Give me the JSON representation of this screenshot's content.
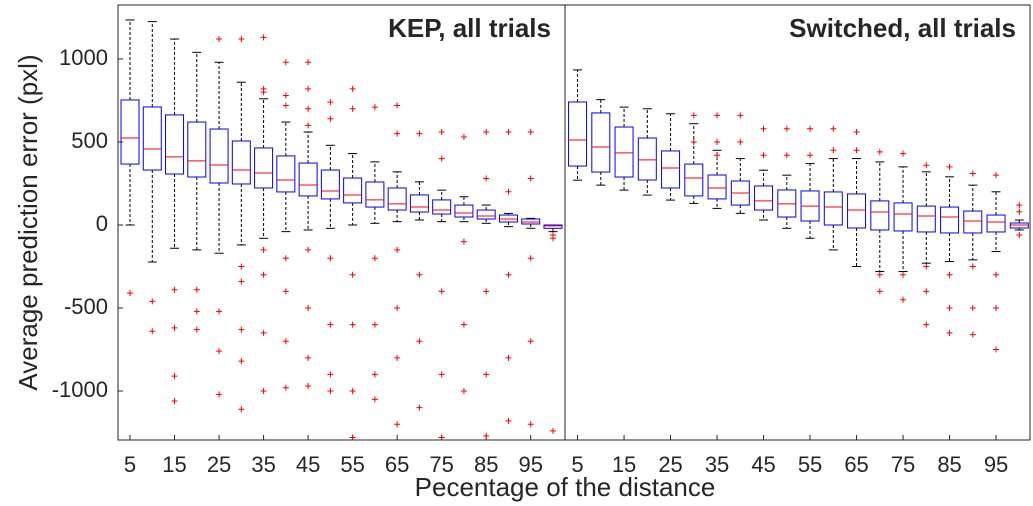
{
  "chart_data": [
    {
      "type": "box",
      "title": "KEP, all trials",
      "ylabel": "Average prediction error (pxl)",
      "xlabel": "Pecentage of the distance",
      "x": [
        5,
        10,
        15,
        20,
        25,
        30,
        35,
        40,
        45,
        50,
        55,
        60,
        65,
        70,
        75,
        80,
        85,
        90,
        95,
        100
      ],
      "xlim": [
        2.3,
        102.7
      ],
      "xticks": [
        5,
        15,
        25,
        35,
        45,
        55,
        65,
        75,
        85,
        95
      ],
      "ylim": [
        -1295,
        1325
      ],
      "yticks": [
        1000,
        500,
        0,
        -500,
        -1000
      ],
      "box_color": "#0000ff",
      "median_color": "#ff0000",
      "whisker_color": "#000000",
      "flier_color": "#ff0000",
      "boxes": [
        {
          "whislo": 0,
          "q1": 367,
          "median": 524,
          "q3": 753,
          "whishi": 1235,
          "fliers": [
            -410
          ]
        },
        {
          "whislo": -223,
          "q1": 331,
          "median": 458,
          "q3": 711,
          "whishi": 1225,
          "fliers": [
            -460,
            -640
          ]
        },
        {
          "whislo": -140,
          "q1": 307,
          "median": 410,
          "q3": 663,
          "whishi": 1120,
          "fliers": [
            -390,
            -620,
            -910,
            -1060
          ]
        },
        {
          "whislo": -150,
          "q1": 289,
          "median": 386,
          "q3": 620,
          "whishi": 1040,
          "fliers": [
            -390,
            -520,
            -630
          ]
        },
        {
          "whislo": -170,
          "q1": 253,
          "median": 361,
          "q3": 578,
          "whishi": 980,
          "fliers": [
            1120,
            -520,
            -760,
            -1020
          ]
        },
        {
          "whislo": -120,
          "q1": 247,
          "median": 331,
          "q3": 506,
          "whishi": 860,
          "fliers": [
            1120,
            -250,
            -340,
            -630,
            -820,
            -1110
          ]
        },
        {
          "whislo": -80,
          "q1": 223,
          "median": 313,
          "q3": 464,
          "whishi": 760,
          "fliers": [
            1130,
            820,
            800,
            -150,
            -300,
            -650,
            -1000
          ]
        },
        {
          "whislo": -40,
          "q1": 199,
          "median": 271,
          "q3": 416,
          "whishi": 620,
          "fliers": [
            980,
            780,
            720,
            -200,
            -400,
            -700,
            -980
          ]
        },
        {
          "whislo": -30,
          "q1": 175,
          "median": 241,
          "q3": 373,
          "whishi": 560,
          "fliers": [
            980,
            820,
            700,
            600,
            -150,
            -500,
            -800,
            -970
          ]
        },
        {
          "whislo": -20,
          "q1": 157,
          "median": 205,
          "q3": 331,
          "whishi": 480,
          "fliers": [
            740,
            640,
            -200,
            -600,
            -900,
            -1000
          ]
        },
        {
          "whislo": 0,
          "q1": 133,
          "median": 181,
          "q3": 283,
          "whishi": 430,
          "fliers": [
            820,
            700,
            -300,
            -600,
            -1000,
            -1280
          ]
        },
        {
          "whislo": 10,
          "q1": 108,
          "median": 151,
          "q3": 259,
          "whishi": 380,
          "fliers": [
            710,
            -200,
            -600,
            -900,
            -1050
          ]
        },
        {
          "whislo": 20,
          "q1": 90,
          "median": 127,
          "q3": 223,
          "whishi": 320,
          "fliers": [
            720,
            550,
            -150,
            -500,
            -800,
            -1200
          ]
        },
        {
          "whislo": 30,
          "q1": 78,
          "median": 108,
          "q3": 181,
          "whishi": 260,
          "fliers": [
            550,
            -300,
            -700,
            -1100
          ]
        },
        {
          "whislo": 20,
          "q1": 66,
          "median": 90,
          "q3": 151,
          "whishi": 210,
          "fliers": [
            560,
            400,
            -400,
            -900,
            -1280
          ]
        },
        {
          "whislo": 20,
          "q1": 48,
          "median": 72,
          "q3": 120,
          "whishi": 170,
          "fliers": [
            530,
            -100,
            -600,
            -1000
          ]
        },
        {
          "whislo": 10,
          "q1": 36,
          "median": 54,
          "q3": 90,
          "whishi": 120,
          "fliers": [
            560,
            280,
            -400,
            -900,
            -1270
          ]
        },
        {
          "whislo": -10,
          "q1": 18,
          "median": 36,
          "q3": 60,
          "whishi": 70,
          "fliers": [
            560,
            200,
            -300,
            -800,
            -1180
          ]
        },
        {
          "whislo": -20,
          "q1": 6,
          "median": 18,
          "q3": 36,
          "whishi": 40,
          "fliers": [
            560,
            280,
            -200,
            -700,
            -1200
          ]
        },
        {
          "whislo": -40,
          "q1": -20,
          "median": -5,
          "q3": 0,
          "whishi": 0,
          "fliers": [
            -60,
            -80,
            -1240
          ]
        }
      ]
    },
    {
      "type": "box",
      "title": "Switched, all trials",
      "x": [
        5,
        10,
        15,
        20,
        25,
        30,
        35,
        40,
        45,
        50,
        55,
        60,
        65,
        70,
        75,
        80,
        85,
        90,
        95,
        100
      ],
      "xlim": [
        2.3,
        102.3
      ],
      "xticks": [
        5,
        15,
        25,
        35,
        45,
        55,
        65,
        75,
        85,
        95
      ],
      "ylim": [
        -1295,
        1325
      ],
      "box_color": "#0000ff",
      "median_color": "#ff0000",
      "whisker_color": "#000000",
      "flier_color": "#ff0000",
      "boxes": [
        {
          "whislo": 270,
          "q1": 355,
          "median": 512,
          "q3": 741,
          "whishi": 934,
          "fliers": []
        },
        {
          "whislo": 240,
          "q1": 319,
          "median": 470,
          "q3": 675,
          "whishi": 755,
          "fliers": []
        },
        {
          "whislo": 210,
          "q1": 289,
          "median": 434,
          "q3": 590,
          "whishi": 710,
          "fliers": []
        },
        {
          "whislo": 180,
          "q1": 271,
          "median": 392,
          "q3": 524,
          "whishi": 700,
          "fliers": []
        },
        {
          "whislo": 150,
          "q1": 223,
          "median": 343,
          "q3": 446,
          "whishi": 670,
          "fliers": []
        },
        {
          "whislo": 130,
          "q1": 175,
          "median": 283,
          "q3": 367,
          "whishi": 610,
          "fliers": [
            660,
            500
          ]
        },
        {
          "whislo": 100,
          "q1": 157,
          "median": 223,
          "q3": 301,
          "whishi": 450,
          "fliers": [
            660,
            500,
            420
          ]
        },
        {
          "whislo": 70,
          "q1": 120,
          "median": 193,
          "q3": 265,
          "whishi": 400,
          "fliers": [
            660,
            500
          ]
        },
        {
          "whislo": 30,
          "q1": 90,
          "median": 145,
          "q3": 235,
          "whishi": 330,
          "fliers": [
            580,
            420
          ]
        },
        {
          "whislo": -20,
          "q1": 48,
          "median": 127,
          "q3": 211,
          "whishi": 300,
          "fliers": [
            580,
            420
          ]
        },
        {
          "whislo": -80,
          "q1": 24,
          "median": 114,
          "q3": 205,
          "whishi": 370,
          "fliers": [
            580,
            420
          ]
        },
        {
          "whislo": -150,
          "q1": 0,
          "median": 108,
          "q3": 199,
          "whishi": 400,
          "fliers": [
            580,
            450
          ]
        },
        {
          "whislo": -250,
          "q1": -18,
          "median": 90,
          "q3": 187,
          "whishi": 400,
          "fliers": [
            560,
            450
          ]
        },
        {
          "whislo": -280,
          "q1": -30,
          "median": 78,
          "q3": 145,
          "whishi": 380,
          "fliers": [
            440,
            -300,
            -400
          ]
        },
        {
          "whislo": -280,
          "q1": -36,
          "median": 66,
          "q3": 133,
          "whishi": 350,
          "fliers": [
            430,
            -300,
            -450
          ]
        },
        {
          "whislo": -230,
          "q1": -42,
          "median": 54,
          "q3": 114,
          "whishi": 320,
          "fliers": [
            360,
            -250,
            -400,
            -600
          ]
        },
        {
          "whislo": -220,
          "q1": -48,
          "median": 48,
          "q3": 108,
          "whishi": 290,
          "fliers": [
            350,
            -300,
            -500,
            -650
          ]
        },
        {
          "whislo": -210,
          "q1": -48,
          "median": 24,
          "q3": 84,
          "whishi": 240,
          "fliers": [
            310,
            -250,
            -500,
            -660
          ]
        },
        {
          "whislo": -160,
          "q1": -42,
          "median": 18,
          "q3": 60,
          "whishi": 200,
          "fliers": [
            300,
            -300,
            -500,
            -750
          ]
        },
        {
          "whislo": -30,
          "q1": -18,
          "median": 0,
          "q3": 12,
          "whishi": 30,
          "fliers": [
            120,
            80,
            -60
          ]
        }
      ]
    }
  ]
}
